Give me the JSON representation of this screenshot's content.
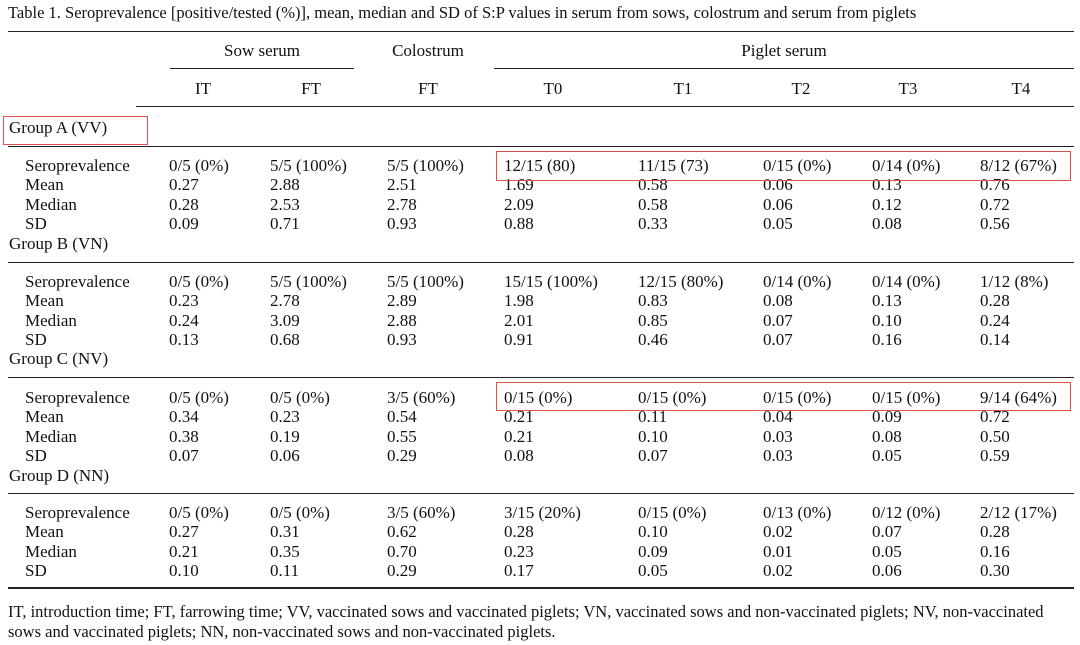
{
  "caption": "Table 1. Seroprevalence [positive/tested (%)], mean, median and SD of S:P values in serum from sows, colostrum and serum from piglets",
  "header": {
    "groups": [
      "Sow serum",
      "Colostrum",
      "Piglet serum"
    ],
    "columns": [
      "IT",
      "FT",
      "FT",
      "T0",
      "T1",
      "T2",
      "T3",
      "T4"
    ]
  },
  "row_labels": [
    "Seroprevalence",
    "Mean",
    "Median",
    "SD"
  ],
  "groups": [
    {
      "title": "Group A (VV)",
      "rows": [
        [
          "0/5 (0%)",
          "5/5 (100%)",
          "5/5 (100%)",
          "12/15 (80)",
          "11/15 (73)",
          "0/15 (0%)",
          "0/14 (0%)",
          "8/12 (67%)"
        ],
        [
          "0.27",
          "2.88",
          "2.51",
          "1.69",
          "0.58",
          "0.06",
          "0.13",
          "0.76"
        ],
        [
          "0.28",
          "2.53",
          "2.78",
          "2.09",
          "0.58",
          "0.06",
          "0.12",
          "0.72"
        ],
        [
          "0.09",
          "0.71",
          "0.93",
          "0.88",
          "0.33",
          "0.05",
          "0.08",
          "0.56"
        ]
      ]
    },
    {
      "title": "Group B (VN)",
      "rows": [
        [
          "0/5 (0%)",
          "5/5 (100%)",
          "5/5 (100%)",
          "15/15 (100%)",
          "12/15 (80%)",
          "0/14 (0%)",
          "0/14 (0%)",
          "1/12 (8%)"
        ],
        [
          "0.23",
          "2.78",
          "2.89",
          "1.98",
          "0.83",
          "0.08",
          "0.13",
          "0.28"
        ],
        [
          "0.24",
          "3.09",
          "2.88",
          "2.01",
          "0.85",
          "0.07",
          "0.10",
          "0.24"
        ],
        [
          "0.13",
          "0.68",
          "0.93",
          "0.91",
          "0.46",
          "0.07",
          "0.16",
          "0.14"
        ]
      ]
    },
    {
      "title": "Group C (NV)",
      "rows": [
        [
          "0/5 (0%)",
          "0/5 (0%)",
          "3/5 (60%)",
          "0/15 (0%)",
          "0/15 (0%)",
          "0/15 (0%)",
          "0/15 (0%)",
          "9/14 (64%)"
        ],
        [
          "0.34",
          "0.23",
          "0.54",
          "0.21",
          "0.11",
          "0.04",
          "0.09",
          "0.72"
        ],
        [
          "0.38",
          "0.19",
          "0.55",
          "0.21",
          "0.10",
          "0.03",
          "0.08",
          "0.50"
        ],
        [
          "0.07",
          "0.06",
          "0.29",
          "0.08",
          "0.07",
          "0.03",
          "0.05",
          "0.59"
        ]
      ]
    },
    {
      "title": "Group D (NN)",
      "rows": [
        [
          "0/5 (0%)",
          "0/5 (0%)",
          "3/5 (60%)",
          "3/15 (20%)",
          "0/15 (0%)",
          "0/13 (0%)",
          "0/12 (0%)",
          "2/12 (17%)"
        ],
        [
          "0.27",
          "0.31",
          "0.62",
          "0.28",
          "0.10",
          "0.02",
          "0.07",
          "0.28"
        ],
        [
          "0.21",
          "0.35",
          "0.70",
          "0.23",
          "0.09",
          "0.01",
          "0.05",
          "0.16"
        ],
        [
          "0.10",
          "0.11",
          "0.29",
          "0.17",
          "0.05",
          "0.02",
          "0.06",
          "0.30"
        ]
      ]
    }
  ],
  "footnote": "IT, introduction time; FT, farrowing time; VV, vaccinated sows and vaccinated piglets; VN, vaccinated sows and non-vaccinated piglets; NV, non-vaccinated sows and vaccinated piglets; NN, non-vaccinated sows and non-vaccinated piglets.",
  "highlight_color": "#e0504a"
}
